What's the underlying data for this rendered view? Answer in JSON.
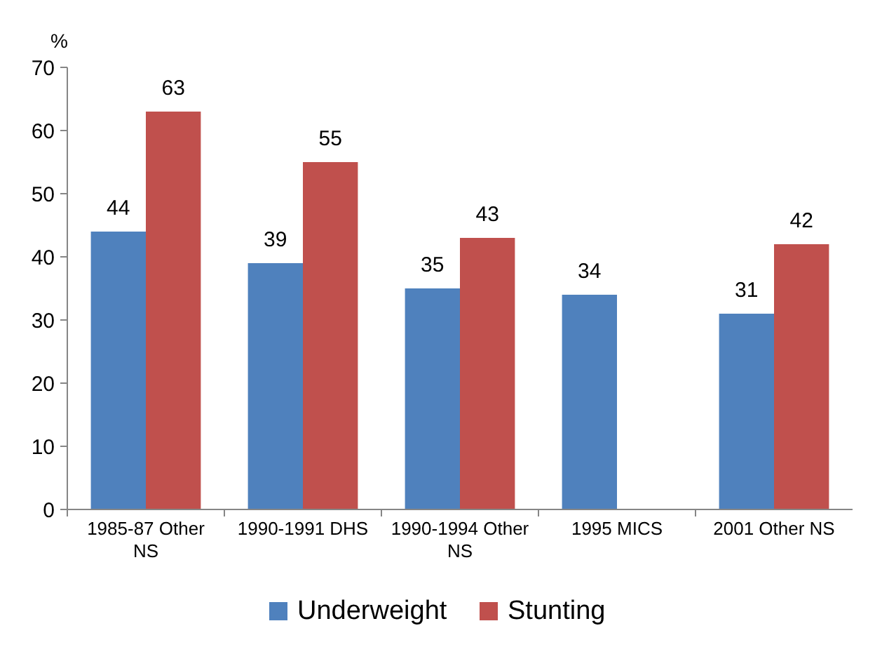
{
  "chart_data": {
    "type": "bar",
    "ylabel": "%",
    "categories": [
      "1985-87 Other NS",
      "1990-1991 DHS",
      "1990-1994 Other NS",
      "1995 MICS",
      "2001 Other NS"
    ],
    "series": [
      {
        "name": "Underweight",
        "color": "#4f81bd",
        "values": [
          44,
          39,
          35,
          34,
          31
        ]
      },
      {
        "name": "Stunting",
        "color": "#c0504d",
        "values": [
          63,
          55,
          43,
          null,
          42
        ]
      }
    ],
    "ylim": [
      0,
      70
    ],
    "yticks": [
      0,
      10,
      20,
      30,
      40,
      50,
      60,
      70
    ],
    "data_labels": true,
    "legend": "bottom",
    "grid": false
  }
}
